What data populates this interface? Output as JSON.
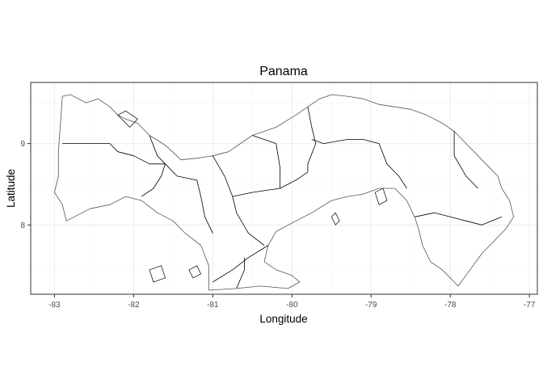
{
  "map": {
    "title": "Panama",
    "xlabel": "Longitude",
    "ylabel": "Latitude",
    "x_ticks": [
      {
        "value": -83,
        "label": "-83"
      },
      {
        "value": -82,
        "label": "-82"
      },
      {
        "value": -81,
        "label": "-81"
      },
      {
        "value": -80,
        "label": "-80"
      },
      {
        "value": -79,
        "label": "-79"
      },
      {
        "value": -78,
        "label": "-78"
      },
      {
        "value": -77,
        "label": "-77"
      }
    ],
    "y_ticks": [
      {
        "value": 8,
        "label": "8"
      },
      {
        "value": 9,
        "label": "9"
      }
    ],
    "xlim": [
      -83.3,
      -76.9
    ],
    "ylim": [
      7.15,
      9.75
    ],
    "colors": {
      "outline": "#000000",
      "grid_major": "#ebebeb",
      "grid_minor": "#f5f5f5",
      "panel_border": "#333333",
      "background": "#ffffff"
    },
    "country_outline": [
      [
        -82.9,
        9.58
      ],
      [
        -82.8,
        9.6
      ],
      [
        -82.6,
        9.5
      ],
      [
        -82.45,
        9.55
      ],
      [
        -82.3,
        9.45
      ],
      [
        -82.2,
        9.35
      ],
      [
        -82.1,
        9.3
      ],
      [
        -81.95,
        9.25
      ],
      [
        -81.8,
        9.1
      ],
      [
        -81.6,
        8.98
      ],
      [
        -81.4,
        8.8
      ],
      [
        -81.2,
        8.82
      ],
      [
        -81.0,
        8.85
      ],
      [
        -80.8,
        8.9
      ],
      [
        -80.5,
        9.1
      ],
      [
        -80.2,
        9.2
      ],
      [
        -79.95,
        9.35
      ],
      [
        -79.8,
        9.45
      ],
      [
        -79.65,
        9.55
      ],
      [
        -79.5,
        9.6
      ],
      [
        -79.3,
        9.58
      ],
      [
        -79.1,
        9.55
      ],
      [
        -78.9,
        9.48
      ],
      [
        -78.7,
        9.45
      ],
      [
        -78.5,
        9.42
      ],
      [
        -78.3,
        9.35
      ],
      [
        -78.1,
        9.25
      ],
      [
        -77.95,
        9.15
      ],
      [
        -77.8,
        9.0
      ],
      [
        -77.65,
        8.85
      ],
      [
        -77.5,
        8.7
      ],
      [
        -77.4,
        8.6
      ],
      [
        -77.35,
        8.45
      ],
      [
        -77.25,
        8.3
      ],
      [
        -77.2,
        8.1
      ],
      [
        -77.3,
        7.95
      ],
      [
        -77.45,
        7.8
      ],
      [
        -77.6,
        7.65
      ],
      [
        -77.75,
        7.45
      ],
      [
        -77.9,
        7.25
      ],
      [
        -78.1,
        7.45
      ],
      [
        -78.25,
        7.55
      ],
      [
        -78.35,
        7.75
      ],
      [
        -78.4,
        7.95
      ],
      [
        -78.45,
        8.1
      ],
      [
        -78.55,
        8.3
      ],
      [
        -78.7,
        8.45
      ],
      [
        -78.9,
        8.45
      ],
      [
        -79.1,
        8.38
      ],
      [
        -79.3,
        8.35
      ],
      [
        -79.5,
        8.3
      ],
      [
        -79.75,
        8.15
      ],
      [
        -79.95,
        8.05
      ],
      [
        -80.2,
        7.92
      ],
      [
        -80.3,
        7.75
      ],
      [
        -80.35,
        7.55
      ],
      [
        -80.2,
        7.45
      ],
      [
        -80.0,
        7.38
      ],
      [
        -79.9,
        7.3
      ],
      [
        -80.05,
        7.22
      ],
      [
        -80.4,
        7.25
      ],
      [
        -80.7,
        7.22
      ],
      [
        -81.05,
        7.2
      ],
      [
        -81.05,
        7.5
      ],
      [
        -81.15,
        7.75
      ],
      [
        -81.35,
        7.9
      ],
      [
        -81.5,
        8.05
      ],
      [
        -81.7,
        8.15
      ],
      [
        -81.9,
        8.3
      ],
      [
        -82.1,
        8.35
      ],
      [
        -82.3,
        8.25
      ],
      [
        -82.55,
        8.2
      ],
      [
        -82.85,
        8.05
      ],
      [
        -82.9,
        8.25
      ],
      [
        -83.0,
        8.4
      ],
      [
        -82.95,
        8.6
      ],
      [
        -82.95,
        8.9
      ],
      [
        -82.9,
        9.58
      ]
    ],
    "province_borders": [
      [
        [
          -82.9,
          9.0
        ],
        [
          -82.6,
          9.0
        ],
        [
          -82.3,
          9.0
        ],
        [
          -82.2,
          8.9
        ],
        [
          -82.0,
          8.85
        ],
        [
          -81.8,
          8.75
        ],
        [
          -81.6,
          8.75
        ]
      ],
      [
        [
          -81.8,
          9.1
        ],
        [
          -81.7,
          8.85
        ],
        [
          -81.6,
          8.75
        ]
      ],
      [
        [
          -81.6,
          8.75
        ],
        [
          -81.45,
          8.6
        ],
        [
          -81.2,
          8.55
        ],
        [
          -81.15,
          8.35
        ],
        [
          -81.1,
          8.1
        ],
        [
          -81.0,
          7.9
        ]
      ],
      [
        [
          -81.6,
          8.75
        ],
        [
          -81.65,
          8.6
        ],
        [
          -81.75,
          8.45
        ],
        [
          -81.9,
          8.35
        ]
      ],
      [
        [
          -81.0,
          8.85
        ],
        [
          -80.85,
          8.6
        ],
        [
          -80.75,
          8.35
        ],
        [
          -80.7,
          8.15
        ],
        [
          -80.55,
          7.9
        ],
        [
          -80.35,
          7.75
        ]
      ],
      [
        [
          -80.75,
          8.35
        ],
        [
          -80.5,
          8.4
        ],
        [
          -80.15,
          8.45
        ],
        [
          -79.95,
          8.55
        ],
        [
          -79.8,
          8.65
        ]
      ],
      [
        [
          -80.5,
          9.1
        ],
        [
          -80.2,
          9.0
        ],
        [
          -80.15,
          8.7
        ],
        [
          -80.15,
          8.45
        ]
      ],
      [
        [
          -79.8,
          9.45
        ],
        [
          -79.75,
          9.2
        ],
        [
          -79.7,
          9.0
        ],
        [
          -79.8,
          8.75
        ],
        [
          -79.8,
          8.65
        ]
      ],
      [
        [
          -79.75,
          9.05
        ],
        [
          -79.6,
          9.0
        ],
        [
          -79.3,
          9.05
        ],
        [
          -79.1,
          9.05
        ],
        [
          -78.9,
          9.0
        ]
      ],
      [
        [
          -78.9,
          9.0
        ],
        [
          -78.8,
          8.75
        ],
        [
          -78.65,
          8.6
        ],
        [
          -78.55,
          8.45
        ]
      ],
      [
        [
          -78.45,
          8.1
        ],
        [
          -78.2,
          8.15
        ],
        [
          -78.0,
          8.1
        ],
        [
          -77.8,
          8.05
        ],
        [
          -77.6,
          8.0
        ],
        [
          -77.35,
          8.1
        ]
      ],
      [
        [
          -77.95,
          9.15
        ],
        [
          -77.95,
          8.85
        ],
        [
          -77.8,
          8.6
        ],
        [
          -77.65,
          8.45
        ]
      ],
      [
        [
          -80.3,
          7.75
        ],
        [
          -80.55,
          7.6
        ],
        [
          -80.75,
          7.45
        ],
        [
          -81.0,
          7.3
        ]
      ],
      [
        [
          -80.7,
          7.22
        ],
        [
          -80.6,
          7.45
        ],
        [
          -80.6,
          7.6
        ]
      ]
    ],
    "islands": [
      [
        [
          -82.2,
          9.35
        ],
        [
          -82.1,
          9.4
        ],
        [
          -81.95,
          9.3
        ],
        [
          -82.05,
          9.2
        ],
        [
          -82.2,
          9.35
        ]
      ],
      [
        [
          -81.8,
          7.45
        ],
        [
          -81.65,
          7.5
        ],
        [
          -81.6,
          7.35
        ],
        [
          -81.75,
          7.3
        ],
        [
          -81.8,
          7.45
        ]
      ],
      [
        [
          -78.95,
          8.4
        ],
        [
          -78.85,
          8.45
        ],
        [
          -78.8,
          8.3
        ],
        [
          -78.9,
          8.25
        ],
        [
          -78.95,
          8.4
        ]
      ],
      [
        [
          -79.5,
          8.1
        ],
        [
          -79.45,
          8.15
        ],
        [
          -79.4,
          8.05
        ],
        [
          -79.45,
          8.0
        ],
        [
          -79.5,
          8.1
        ]
      ],
      [
        [
          -81.3,
          7.45
        ],
        [
          -81.2,
          7.5
        ],
        [
          -81.15,
          7.4
        ],
        [
          -81.25,
          7.35
        ],
        [
          -81.3,
          7.45
        ]
      ]
    ]
  }
}
